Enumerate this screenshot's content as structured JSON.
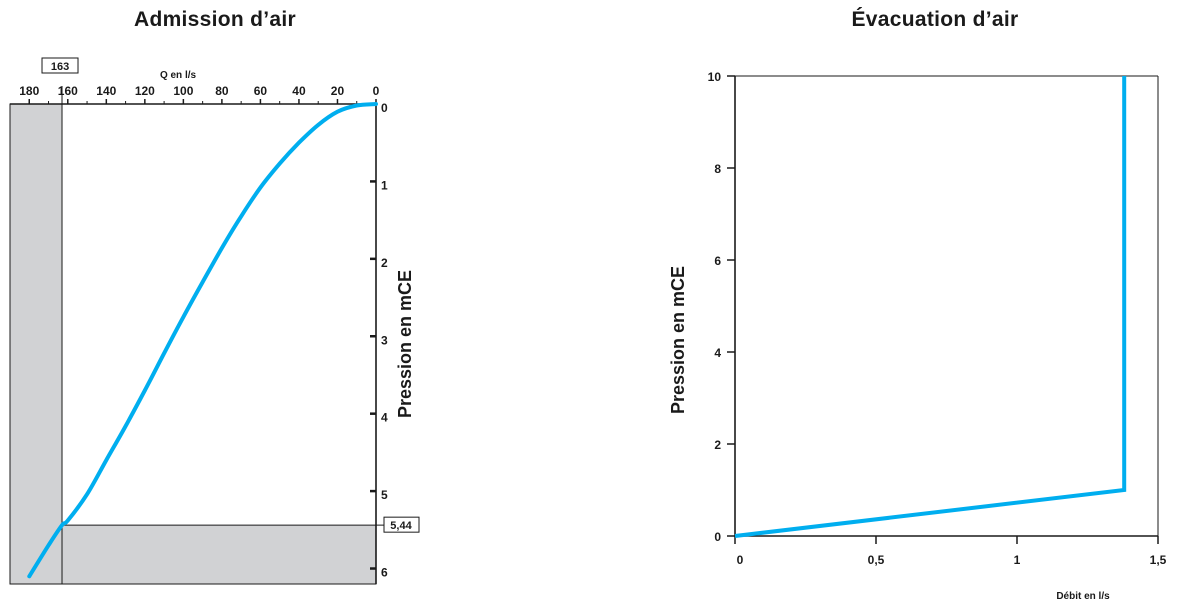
{
  "chart_data": [
    {
      "type": "line",
      "title": "Admission d’air",
      "xlabel": "Q en l/s",
      "ylabel": "Pression en mCE",
      "x_ticks": [
        "180",
        "160",
        "140",
        "120",
        "100",
        "80",
        "60",
        "40",
        "20",
        "0"
      ],
      "y_ticks": [
        "0",
        "1",
        "2",
        "3",
        "4",
        "5",
        "6"
      ],
      "xlim": [
        190,
        0
      ],
      "ylim": [
        0,
        6.2
      ],
      "x_axis_reversed": true,
      "y_axis_inverted": true,
      "grid": false,
      "series": [
        {
          "color": "#00aeef",
          "x": [
            0,
            10,
            20,
            30,
            40,
            50,
            60,
            70,
            80,
            90,
            100,
            110,
            120,
            130,
            140,
            150,
            160,
            163,
            170,
            180
          ],
          "y": [
            0,
            0.02,
            0.1,
            0.27,
            0.5,
            0.77,
            1.08,
            1.45,
            1.86,
            2.3,
            2.75,
            3.22,
            3.7,
            4.16,
            4.6,
            5.04,
            5.38,
            5.44,
            5.7,
            6.1
          ]
        }
      ],
      "highlight": {
        "q_value": "163",
        "pressure_value": "5,44",
        "x": 163,
        "y": 5.44,
        "fill_color": "#d1d2d4"
      }
    },
    {
      "type": "line",
      "title": "Évacuation d’air",
      "xlabel": "Débit en l/s",
      "ylabel": "Pression en mCE",
      "x_ticks": [
        "0",
        "0,5",
        "1",
        "1,5"
      ],
      "y_ticks": [
        "0",
        "2",
        "4",
        "6",
        "8",
        "10"
      ],
      "xlim": [
        0,
        1.5
      ],
      "ylim": [
        0,
        10
      ],
      "grid": false,
      "series": [
        {
          "color": "#00aeef",
          "x": [
            0,
            1.38,
            1.38
          ],
          "y": [
            0,
            1,
            10
          ]
        }
      ]
    }
  ]
}
